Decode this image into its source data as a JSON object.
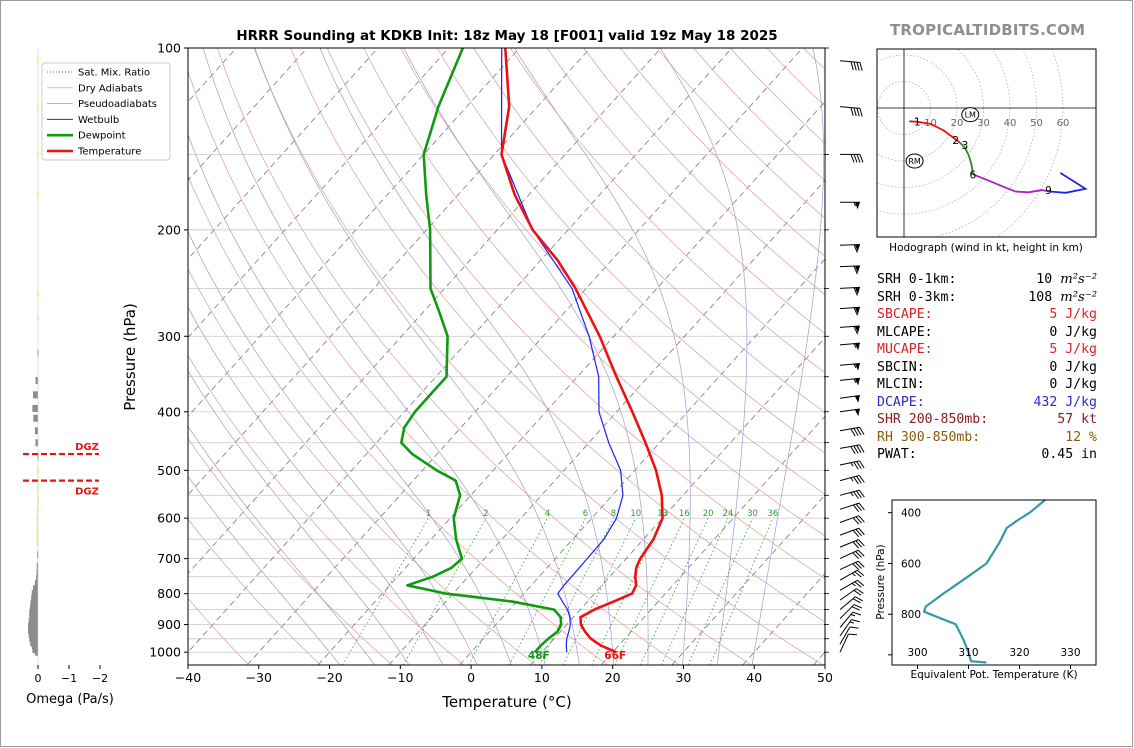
{
  "brand": "TROPICALTIDBITS.COM",
  "colors": {
    "temperature": "#ee1111",
    "dewpoint": "#109a10",
    "wetbulb": "#1f1fff",
    "dry_adiabat": "#e59a9a",
    "pseudoadiabat": "#9c9cd8",
    "mixing_ratio": "#2f9f2f",
    "dgz": "#ee1111",
    "omega_bar": "#8c8c8c",
    "omega_bar_dgz": "#ffee00",
    "theta_e": "#3399aa",
    "hodo_0_1": "#ee1111",
    "hodo_1_3": "#2a8a2a",
    "hodo_3_9": "#b020c0",
    "hodo_9_plus": "#2323ee",
    "cape_red": "#dd2222",
    "dcape_blue": "#2a2ad0",
    "brown": "#8a5a10"
  },
  "chart_data": [
    {
      "id": "skewt",
      "type": "line",
      "title": "HRRR Sounding at KDKB Init: 18z May 18 [F001] valid 19z May 18 2025",
      "xlabel": "Temperature (°C)",
      "ylabel": "Pressure (hPa)",
      "xlim": [
        -40,
        50
      ],
      "ylim": [
        1050,
        100
      ],
      "y_scale": "log",
      "xticks": [
        -40,
        -30,
        -20,
        -10,
        0,
        10,
        20,
        30,
        40,
        50
      ],
      "xtick_labels": [
        "−40",
        "−30",
        "−20",
        "−10",
        "0",
        "10",
        "20",
        "30",
        "40",
        "50"
      ],
      "yticks": [
        1000,
        900,
        800,
        700,
        600,
        500,
        400,
        300,
        200,
        100
      ],
      "ytick_labels": [
        "1000",
        "900",
        "800",
        "700",
        "600",
        "500",
        "400",
        "300",
        "200",
        "100"
      ],
      "grid": true,
      "legend_position": "top-left",
      "legend": [
        {
          "label": "Sat. Mix. Ratio",
          "style": "dotted",
          "color": "#2f9f2f"
        },
        {
          "label": "Dry Adiabats",
          "style": "solid-thin",
          "color": "#e59a9a"
        },
        {
          "label": "Pseudoadiabats",
          "style": "solid-thin",
          "color": "#9c9cd8"
        },
        {
          "label": "Wetbulb",
          "style": "solid",
          "color": "#1f1fff"
        },
        {
          "label": "Dewpoint",
          "style": "thick",
          "color": "#109a10"
        },
        {
          "label": "Temperature",
          "style": "thick",
          "color": "#ee1111"
        }
      ],
      "mixing_ratio_labels": [
        "1",
        "2",
        "4",
        "6",
        "8",
        "10",
        "13",
        "16",
        "20",
        "24",
        "30",
        "36"
      ],
      "mixing_ratio_values": [
        1,
        2,
        4,
        6,
        8,
        10,
        13,
        16,
        20,
        24,
        30,
        36
      ],
      "surface_labels": {
        "dewpoint": "48F",
        "temperature": "66F"
      },
      "series": [
        {
          "name": "Temperature",
          "points": [
            [
              1000,
              20.5
            ],
            [
              975,
              17.5
            ],
            [
              950,
              15.2
            ],
            [
              925,
              13.5
            ],
            [
              900,
              12.0
            ],
            [
              875,
              11.0
            ],
            [
              850,
              12.0
            ],
            [
              820,
              14.0
            ],
            [
              800,
              15.3
            ],
            [
              775,
              14.8
            ],
            [
              750,
              13.6
            ],
            [
              725,
              12.6
            ],
            [
              700,
              12.0
            ],
            [
              650,
              11.4
            ],
            [
              600,
              10.0
            ],
            [
              550,
              7.0
            ],
            [
              500,
              3.0
            ],
            [
              450,
              -2.0
            ],
            [
              400,
              -7.8
            ],
            [
              350,
              -14.5
            ],
            [
              300,
              -22.0
            ],
            [
              250,
              -31.5
            ],
            [
              225,
              -37.5
            ],
            [
              200,
              -45.0
            ],
            [
              175,
              -52.0
            ],
            [
              150,
              -59.0
            ],
            [
              125,
              -64.0
            ],
            [
              100,
              -72.0
            ]
          ]
        },
        {
          "name": "Dewpoint",
          "points": [
            [
              1000,
              9.0
            ],
            [
              975,
              9.0
            ],
            [
              950,
              9.2
            ],
            [
              925,
              9.6
            ],
            [
              900,
              9.2
            ],
            [
              875,
              8.2
            ],
            [
              850,
              6.3
            ],
            [
              825,
              -0.5
            ],
            [
              800,
              -11.0
            ],
            [
              775,
              -17.5
            ],
            [
              750,
              -15.0
            ],
            [
              725,
              -13.5
            ],
            [
              700,
              -13.2
            ],
            [
              650,
              -16.5
            ],
            [
              600,
              -19.5
            ],
            [
              550,
              -21.5
            ],
            [
              520,
              -24.0
            ],
            [
              500,
              -28.0
            ],
            [
              470,
              -33.5
            ],
            [
              450,
              -36.5
            ],
            [
              425,
              -38.0
            ],
            [
              400,
              -38.5
            ],
            [
              375,
              -38.5
            ],
            [
              350,
              -38.5
            ],
            [
              300,
              -43.5
            ],
            [
              275,
              -47.5
            ],
            [
              250,
              -52.0
            ],
            [
              200,
              -59.5
            ],
            [
              175,
              -64.5
            ],
            [
              150,
              -70.0
            ],
            [
              125,
              -74.0
            ],
            [
              100,
              -78.0
            ]
          ]
        },
        {
          "name": "Wetbulb",
          "points": [
            [
              1000,
              13.5
            ],
            [
              975,
              12.6
            ],
            [
              950,
              11.8
            ],
            [
              925,
              11.2
            ],
            [
              900,
              10.5
            ],
            [
              875,
              9.5
            ],
            [
              850,
              8.2
            ],
            [
              825,
              6.5
            ],
            [
              800,
              4.8
            ],
            [
              775,
              4.6
            ],
            [
              750,
              4.6
            ],
            [
              700,
              4.5
            ],
            [
              650,
              4.4
            ],
            [
              600,
              3.5
            ],
            [
              550,
              1.5
            ],
            [
              500,
              -2.0
            ],
            [
              450,
              -7.2
            ],
            [
              400,
              -12.5
            ],
            [
              350,
              -17.0
            ],
            [
              300,
              -23.5
            ],
            [
              250,
              -32.0
            ],
            [
              200,
              -45.0
            ],
            [
              150,
              -59.0
            ],
            [
              100,
              -72.5
            ]
          ]
        }
      ],
      "wind_barbs": [
        {
          "p": 1000,
          "dir": 205,
          "spd": 10
        },
        {
          "p": 970,
          "dir": 210,
          "spd": 10
        },
        {
          "p": 940,
          "dir": 215,
          "spd": 15
        },
        {
          "p": 910,
          "dir": 220,
          "spd": 15
        },
        {
          "p": 880,
          "dir": 225,
          "spd": 20
        },
        {
          "p": 850,
          "dir": 230,
          "spd": 20
        },
        {
          "p": 820,
          "dir": 235,
          "spd": 20
        },
        {
          "p": 790,
          "dir": 240,
          "spd": 25
        },
        {
          "p": 760,
          "dir": 240,
          "spd": 25
        },
        {
          "p": 730,
          "dir": 245,
          "spd": 30
        },
        {
          "p": 700,
          "dir": 245,
          "spd": 30
        },
        {
          "p": 670,
          "dir": 248,
          "spd": 30
        },
        {
          "p": 640,
          "dir": 250,
          "spd": 30
        },
        {
          "p": 610,
          "dir": 250,
          "spd": 30
        },
        {
          "p": 580,
          "dir": 252,
          "spd": 30
        },
        {
          "p": 550,
          "dir": 255,
          "spd": 35
        },
        {
          "p": 520,
          "dir": 255,
          "spd": 35
        },
        {
          "p": 490,
          "dir": 258,
          "spd": 35
        },
        {
          "p": 460,
          "dir": 260,
          "spd": 40
        },
        {
          "p": 430,
          "dir": 260,
          "spd": 40
        },
        {
          "p": 400,
          "dir": 262,
          "spd": 50
        },
        {
          "p": 380,
          "dir": 262,
          "spd": 50
        },
        {
          "p": 355,
          "dir": 264,
          "spd": 55
        },
        {
          "p": 335,
          "dir": 265,
          "spd": 55
        },
        {
          "p": 310,
          "dir": 265,
          "spd": 55
        },
        {
          "p": 290,
          "dir": 266,
          "spd": 60
        },
        {
          "p": 270,
          "dir": 266,
          "spd": 60
        },
        {
          "p": 250,
          "dir": 267,
          "spd": 60
        },
        {
          "p": 230,
          "dir": 268,
          "spd": 60
        },
        {
          "p": 212,
          "dir": 268,
          "spd": 60
        },
        {
          "p": 180,
          "dir": 270,
          "spd": 55
        },
        {
          "p": 150,
          "dir": 270,
          "spd": 40
        },
        {
          "p": 125,
          "dir": 275,
          "spd": 40
        },
        {
          "p": 105,
          "dir": 275,
          "spd": 40
        }
      ]
    },
    {
      "id": "omega",
      "type": "bar",
      "xlabel": "Omega (Pa/s)",
      "xlim": [
        0,
        -2
      ],
      "xticks": [
        0,
        -1,
        -2
      ],
      "xtick_labels": [
        "0",
        "−1",
        "−2"
      ],
      "dgz_label": "DGZ",
      "dgz_bounds": [
        470,
        520
      ],
      "values": [
        {
          "p": 1000,
          "w": -0.1
        },
        {
          "p": 990,
          "w": -0.18
        },
        {
          "p": 975,
          "w": -0.2
        },
        {
          "p": 965,
          "w": -0.25
        },
        {
          "p": 950,
          "w": -0.28
        },
        {
          "p": 935,
          "w": -0.3
        },
        {
          "p": 920,
          "w": -0.32
        },
        {
          "p": 905,
          "w": -0.32
        },
        {
          "p": 890,
          "w": -0.3
        },
        {
          "p": 875,
          "w": -0.28
        },
        {
          "p": 860,
          "w": -0.28
        },
        {
          "p": 845,
          "w": -0.26
        },
        {
          "p": 830,
          "w": -0.24
        },
        {
          "p": 815,
          "w": -0.22
        },
        {
          "p": 800,
          "w": -0.2
        },
        {
          "p": 785,
          "w": -0.16
        },
        {
          "p": 770,
          "w": -0.1
        },
        {
          "p": 755,
          "w": -0.06
        },
        {
          "p": 740,
          "w": -0.05
        },
        {
          "p": 720,
          "w": -0.04
        },
        {
          "p": 690,
          "w": -0.03
        },
        {
          "p": 660,
          "w": -0.04
        },
        {
          "p": 640,
          "w": -0.04
        },
        {
          "p": 620,
          "w": -0.04
        },
        {
          "p": 600,
          "w": -0.04
        },
        {
          "p": 580,
          "w": -0.03
        },
        {
          "p": 560,
          "w": -0.02
        },
        {
          "p": 540,
          "w": -0.02
        },
        {
          "p": 525,
          "w": -0.02
        },
        {
          "p": 500,
          "w": -0.02
        },
        {
          "p": 475,
          "w": -0.02
        },
        {
          "p": 450,
          "w": -0.08
        },
        {
          "p": 430,
          "w": -0.1
        },
        {
          "p": 410,
          "w": -0.15
        },
        {
          "p": 395,
          "w": -0.18
        },
        {
          "p": 375,
          "w": -0.16
        },
        {
          "p": 355,
          "w": -0.08
        },
        {
          "p": 320,
          "w": -0.02
        },
        {
          "p": 280,
          "w": -0.02
        },
        {
          "p": 255,
          "w": -0.02
        },
        {
          "p": 175,
          "w": -0.02
        },
        {
          "p": 150,
          "w": -0.02
        },
        {
          "p": 125,
          "w": -0.02
        },
        {
          "p": 105,
          "w": -0.02
        }
      ]
    },
    {
      "id": "hodograph",
      "type": "line",
      "xlabel": "Hodograph (wind in kt, height in km)",
      "ring_labels": [
        "10",
        "20",
        "30",
        "40",
        "50",
        "60"
      ],
      "ring_values": [
        10,
        20,
        30,
        40,
        50,
        60
      ],
      "markers": [
        {
          "label": "LM",
          "u": 25.0,
          "v": -2.5
        },
        {
          "label": "RM",
          "u": 4.0,
          "v": -20.0
        }
      ],
      "height_labels": [
        {
          "label": "1",
          "u": 5.0,
          "v": -5.0
        },
        {
          "label": "2",
          "u": 19.5,
          "v": -12.0
        },
        {
          "label": "3",
          "u": 23.0,
          "v": -14.0
        },
        {
          "label": "6",
          "u": 26.0,
          "v": -25.0
        },
        {
          "label": "9",
          "u": 54.5,
          "v": -31.0
        }
      ],
      "series": [
        {
          "name": "0-1 km",
          "points": [
            [
              2.0,
              -5.0
            ],
            [
              5.0,
              -5.2
            ],
            [
              10.0,
              -6.0
            ],
            [
              15.0,
              -8.5
            ],
            [
              19.0,
              -11.5
            ],
            [
              21.0,
              -13.0
            ]
          ]
        },
        {
          "name": "1-3 km",
          "points": [
            [
              21.0,
              -13.0
            ],
            [
              23.0,
              -15.0
            ],
            [
              24.5,
              -18.0
            ],
            [
              25.5,
              -21.5
            ],
            [
              26.0,
              -25.0
            ]
          ]
        },
        {
          "name": "3-9 km",
          "points": [
            [
              26.0,
              -25.0
            ],
            [
              31.0,
              -27.0
            ],
            [
              37.0,
              -29.5
            ],
            [
              42.0,
              -31.5
            ],
            [
              47.0,
              -31.8
            ],
            [
              52.0,
              -31.0
            ],
            [
              55.0,
              -31.5
            ]
          ]
        },
        {
          "name": "9+ km",
          "points": [
            [
              55.0,
              -31.5
            ],
            [
              61.0,
              -32.0
            ],
            [
              68.5,
              -30.5
            ],
            [
              59.0,
              -24.5
            ]
          ]
        }
      ]
    },
    {
      "id": "theta_e",
      "type": "line",
      "xlabel": "Equivalent Pot. Temperature (K)",
      "ylabel": "Pressure (hPa)",
      "xlim": [
        295,
        335
      ],
      "ylim": [
        1000,
        350
      ],
      "xticks": [
        300,
        310,
        320,
        330
      ],
      "xtick_labels": [
        "300",
        "310",
        "320",
        "330"
      ],
      "yticks": [
        400,
        600,
        800
      ],
      "ytick_labels": [
        "400",
        "600",
        "800"
      ],
      "points": [
        [
          990,
          313.5
        ],
        [
          985,
          310.5
        ],
        [
          950,
          310.0
        ],
        [
          900,
          309.0
        ],
        [
          840,
          307.5
        ],
        [
          800,
          302.5
        ],
        [
          790,
          301.3
        ],
        [
          770,
          301.6
        ],
        [
          720,
          305.0
        ],
        [
          650,
          310.0
        ],
        [
          600,
          313.5
        ],
        [
          520,
          316.0
        ],
        [
          460,
          317.5
        ],
        [
          425,
          320.0
        ],
        [
          400,
          322.0
        ],
        [
          350,
          325.0
        ]
      ]
    }
  ],
  "params": [
    {
      "label": "SRH 0-1km:",
      "value": "10",
      "unit": "m²s⁻²",
      "color": "#000000"
    },
    {
      "label": "SRH 0-3km:",
      "value": "108",
      "unit": "m²s⁻²",
      "color": "#000000"
    },
    {
      "label": "SBCAPE:",
      "value": "5 J/kg",
      "color": "#dd2222"
    },
    {
      "label": "MLCAPE:",
      "value": "0 J/kg",
      "color": "#000000"
    },
    {
      "label": "MUCAPE:",
      "value": "5 J/kg",
      "color": "#dd2222"
    },
    {
      "label": "SBCIN:",
      "value": "0 J/kg",
      "color": "#000000"
    },
    {
      "label": "MLCIN:",
      "value": "0 J/kg",
      "color": "#000000"
    },
    {
      "label": "DCAPE:",
      "value": "432 J/kg",
      "color": "#2a2ad0"
    },
    {
      "label": "SHR 200-850mb:",
      "value": "57 kt",
      "color": "#8b1a1a"
    },
    {
      "label": "RH 300-850mb:",
      "value": "12 %",
      "color": "#8a5a10"
    },
    {
      "label": "PWAT:",
      "value": "0.45 in",
      "color": "#000000"
    }
  ]
}
